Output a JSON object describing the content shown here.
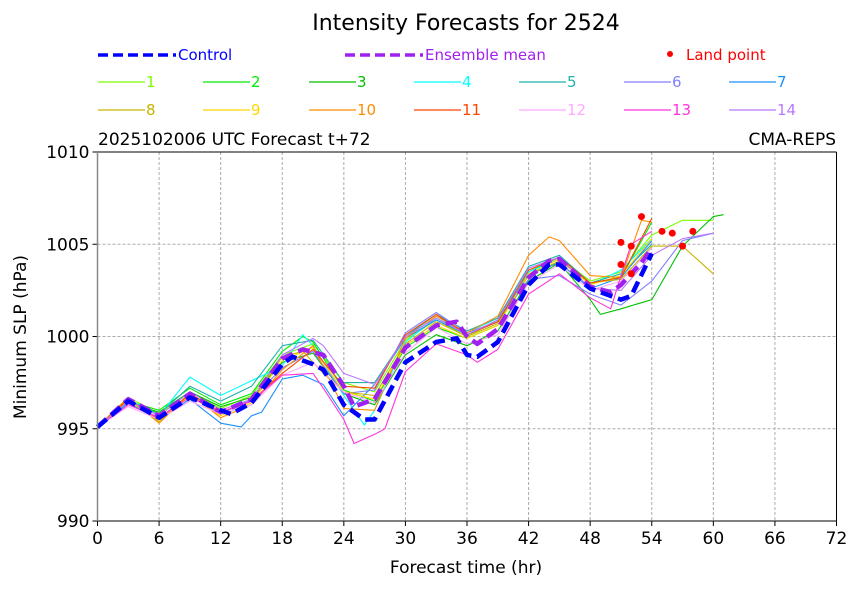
{
  "chart_data": {
    "type": "line",
    "title": "Intensity Forecasts for 2524",
    "subtitle_left": "2025102006 UTC Forecast t+72",
    "subtitle_right": "CMA-REPS",
    "xlabel": "Forecast time (hr)",
    "ylabel": "Minimum SLP (hPa)",
    "xlim": [
      0,
      72
    ],
    "ylim": [
      990,
      1010
    ],
    "xticks": [
      0,
      6,
      12,
      18,
      24,
      30,
      36,
      42,
      48,
      54,
      60,
      66,
      72
    ],
    "yticks": [
      990,
      995,
      1000,
      1005,
      1010
    ],
    "grid": true,
    "legend_placement": "top",
    "series": [
      {
        "name": "Control",
        "color": "#0000ff",
        "style": "dashed-thick",
        "x": [
          0,
          3,
          6,
          9,
          12,
          13,
          15,
          18,
          19,
          21,
          22,
          24,
          26,
          27,
          30,
          33,
          35,
          36,
          37,
          39,
          42,
          44,
          45,
          48,
          51,
          52,
          54
        ],
        "y": [
          995.1,
          996.5,
          995.6,
          996.7,
          996.0,
          995.8,
          996.4,
          998.5,
          998.9,
          998.5,
          998.2,
          996.3,
          995.5,
          995.5,
          998.6,
          999.7,
          999.9,
          999.0,
          998.9,
          999.7,
          1002.8,
          1003.9,
          1003.9,
          1002.6,
          1002.0,
          1002.2,
          1004.5
        ]
      },
      {
        "name": "Ensemble mean",
        "color": "#a020f0",
        "style": "dashed-thick",
        "x": [
          0,
          3,
          6,
          9,
          12,
          15,
          18,
          20,
          22,
          24,
          25,
          27,
          30,
          33,
          35,
          36,
          37,
          39,
          42,
          44,
          45,
          48,
          50,
          51,
          53,
          54
        ],
        "y": [
          995.1,
          996.6,
          995.7,
          996.9,
          995.9,
          996.6,
          998.8,
          999.3,
          999.0,
          997.3,
          996.2,
          996.6,
          999.4,
          1000.6,
          1000.8,
          1000.0,
          999.6,
          1000.4,
          1003.2,
          1004.1,
          1004.2,
          1002.7,
          1002.4,
          1002.8,
          1004.0,
          1004.8
        ]
      },
      {
        "name": "1",
        "color": "#7cfc00",
        "style": "thin",
        "x": [
          0,
          3,
          6,
          9,
          12,
          15,
          18,
          21,
          24,
          27,
          30,
          33,
          36,
          39,
          42,
          45,
          48,
          51,
          54,
          57,
          60
        ],
        "y": [
          995.1,
          996.7,
          995.8,
          997.0,
          996.1,
          996.8,
          999.0,
          999.6,
          997.5,
          997.0,
          999.8,
          1000.9,
          1000.0,
          1000.9,
          1003.6,
          1004.3,
          1003.0,
          1003.5,
          1005.5,
          1006.3,
          1006.3
        ]
      },
      {
        "name": "2",
        "color": "#00ee00",
        "style": "thin",
        "x": [
          0,
          3,
          6,
          9,
          12,
          15,
          18,
          20,
          21,
          24,
          27,
          30,
          33,
          36,
          39,
          42,
          45,
          48,
          51,
          54
        ],
        "y": [
          995.1,
          996.5,
          996.0,
          997.2,
          996.3,
          996.9,
          999.2,
          1000.0,
          999.7,
          997.1,
          996.5,
          999.4,
          1000.5,
          999.9,
          1000.6,
          1003.5,
          1004.3,
          1002.9,
          1003.2,
          1006.2
        ]
      },
      {
        "name": "3",
        "color": "#00c000",
        "style": "thin",
        "x": [
          0,
          3,
          6,
          9,
          12,
          15,
          18,
          21,
          24,
          27,
          30,
          33,
          36,
          39,
          42,
          45,
          48,
          49,
          51,
          54,
          57,
          60,
          61
        ],
        "y": [
          995.1,
          996.4,
          995.9,
          997.0,
          996.2,
          996.7,
          998.6,
          999.1,
          996.9,
          996.3,
          999.0,
          1000.1,
          999.5,
          1000.3,
          1003.0,
          1004.0,
          1002.0,
          1001.2,
          1001.5,
          1002.0,
          1004.9,
          1006.5,
          1006.6
        ]
      },
      {
        "name": "4",
        "color": "#00ffff",
        "style": "thin",
        "x": [
          0,
          3,
          6,
          9,
          12,
          15,
          18,
          20,
          21,
          24,
          26,
          27,
          30,
          33,
          36,
          39,
          42,
          45,
          48,
          51,
          54
        ],
        "y": [
          995.1,
          996.6,
          995.7,
          997.8,
          996.8,
          997.6,
          998.4,
          1000.1,
          999.5,
          996.8,
          995.2,
          996.0,
          999.7,
          1001.0,
          1000.2,
          1001.0,
          1003.5,
          1004.2,
          1002.8,
          1003.6,
          1005.3
        ]
      },
      {
        "name": "5",
        "color": "#20b2aa",
        "style": "thin",
        "x": [
          0,
          3,
          6,
          9,
          12,
          15,
          18,
          21,
          24,
          27,
          30,
          33,
          36,
          39,
          42,
          45,
          48,
          51,
          54
        ],
        "y": [
          995.1,
          996.5,
          995.8,
          997.3,
          996.5,
          997.3,
          999.5,
          999.8,
          997.5,
          997.5,
          1000.0,
          1001.2,
          1000.3,
          1001.0,
          1003.8,
          1004.4,
          1002.9,
          1003.4,
          1005.0
        ]
      },
      {
        "name": "6",
        "color": "#8080ff",
        "style": "thin",
        "x": [
          0,
          3,
          6,
          9,
          12,
          15,
          18,
          21,
          24,
          27,
          30,
          33,
          36,
          39,
          42,
          45,
          48,
          51,
          54,
          57,
          60
        ],
        "y": [
          995.1,
          996.4,
          995.6,
          996.8,
          995.8,
          996.6,
          998.3,
          999.2,
          996.9,
          997.1,
          1000.2,
          1001.3,
          1000.2,
          1000.8,
          1003.1,
          1003.3,
          1002.3,
          1001.7,
          1003.0,
          1005.2,
          1005.6
        ]
      },
      {
        "name": "7",
        "color": "#1e90ff",
        "style": "thin",
        "x": [
          0,
          3,
          6,
          9,
          12,
          14,
          15,
          16,
          18,
          20,
          22,
          24,
          27,
          30,
          33,
          36,
          39,
          42,
          45,
          48,
          51,
          54
        ],
        "y": [
          995.1,
          996.4,
          995.5,
          996.6,
          995.3,
          995.1,
          995.7,
          995.9,
          997.7,
          997.9,
          997.4,
          995.7,
          997.4,
          999.9,
          1000.9,
          1000.1,
          1000.8,
          1003.4,
          1004.0,
          1002.6,
          1003.2,
          1005.2
        ]
      },
      {
        "name": "8",
        "color": "#c8b400",
        "style": "thin",
        "x": [
          0,
          3,
          6,
          9,
          12,
          15,
          18,
          20,
          22,
          24,
          27,
          30,
          33,
          36,
          39,
          42,
          45,
          48,
          51,
          54,
          57,
          60
        ],
        "y": [
          995.1,
          996.6,
          995.4,
          996.9,
          995.9,
          996.5,
          998.9,
          999.2,
          998.0,
          997.0,
          996.8,
          999.6,
          1000.8,
          1000.0,
          1000.7,
          1003.3,
          1004.1,
          1002.9,
          1003.1,
          1004.9,
          1004.9,
          1003.4
        ]
      },
      {
        "name": "9",
        "color": "#ffd700",
        "style": "thin",
        "x": [
          0,
          3,
          6,
          9,
          12,
          15,
          18,
          21,
          24,
          27,
          30,
          33,
          36,
          39,
          42,
          45,
          48,
          51,
          54
        ],
        "y": [
          995.1,
          996.5,
          995.5,
          996.8,
          995.7,
          996.4,
          998.7,
          999.4,
          997.0,
          996.6,
          999.5,
          1000.6,
          999.9,
          1000.6,
          1003.4,
          1004.2,
          1002.8,
          1003.3,
          1005.3
        ]
      },
      {
        "name": "10",
        "color": "#ff8c00",
        "style": "thin",
        "x": [
          0,
          3,
          6,
          9,
          12,
          15,
          18,
          21,
          24,
          27,
          30,
          33,
          36,
          39,
          42,
          44,
          45,
          48,
          51,
          53,
          54
        ],
        "y": [
          995.1,
          996.7,
          995.3,
          996.9,
          995.6,
          996.3,
          998.2,
          999.5,
          996.1,
          996.0,
          999.9,
          1001.1,
          1000.2,
          1001.1,
          1004.4,
          1005.4,
          1005.2,
          1003.3,
          1003.2,
          1006.3,
          1006.2
        ]
      },
      {
        "name": "11",
        "color": "#ff4500",
        "style": "thin",
        "x": [
          0,
          3,
          6,
          9,
          12,
          15,
          18,
          21,
          24,
          27,
          30,
          33,
          36,
          39,
          42,
          45,
          48,
          51,
          54
        ],
        "y": [
          995.1,
          996.6,
          995.5,
          996.9,
          995.9,
          996.5,
          998.0,
          999.3,
          997.3,
          997.2,
          1000.1,
          1001.2,
          1000.1,
          1000.8,
          1003.6,
          1004.3,
          1002.9,
          1003.2,
          1006.4
        ]
      },
      {
        "name": "12",
        "color": "#ffaaff",
        "style": "thin",
        "x": [
          0,
          3,
          6,
          9,
          12,
          15,
          18,
          21,
          24,
          27,
          30,
          33,
          36,
          39,
          42,
          45,
          48,
          51,
          54
        ],
        "y": [
          995.1,
          996.2,
          995.5,
          996.5,
          995.8,
          996.3,
          997.9,
          998.6,
          997.0,
          996.4,
          999.1,
          1000.5,
          999.6,
          1000.1,
          1002.9,
          1003.9,
          1002.5,
          1003.0,
          1004.8
        ]
      },
      {
        "name": "13",
        "color": "#ff33dd",
        "style": "thin",
        "x": [
          0,
          3,
          6,
          9,
          12,
          15,
          18,
          21,
          22,
          24,
          25,
          27,
          28,
          30,
          33,
          36,
          37,
          39,
          42,
          45,
          48,
          50,
          51,
          52,
          54
        ],
        "y": [
          995.1,
          996.3,
          995.6,
          996.7,
          995.9,
          996.5,
          997.9,
          998.0,
          997.2,
          995.5,
          994.2,
          994.7,
          995.0,
          998.1,
          999.6,
          999.0,
          998.6,
          999.3,
          1002.3,
          1003.4,
          1002.1,
          1001.5,
          1003.3,
          1005.0,
          1005.7
        ]
      },
      {
        "name": "14",
        "color": "#bb77ff",
        "style": "thin",
        "x": [
          0,
          3,
          6,
          9,
          12,
          15,
          18,
          21,
          22,
          24,
          27,
          30,
          33,
          36,
          39,
          42,
          45,
          48,
          51,
          54,
          57,
          60
        ],
        "y": [
          995.1,
          996.5,
          995.7,
          997.0,
          996.0,
          996.6,
          999.0,
          999.9,
          999.5,
          998.0,
          997.4,
          1000.0,
          1001.0,
          1000.1,
          1000.9,
          1003.7,
          1004.3,
          1002.6,
          1002.5,
          1004.4,
          1005.3,
          1005.6
        ]
      }
    ],
    "land_points": {
      "name": "Land point",
      "color": "#ff0000",
      "x": [
        51,
        51,
        52,
        52,
        53,
        55,
        56,
        57,
        58
      ],
      "y": [
        1005.1,
        1003.9,
        1004.9,
        1003.4,
        1006.5,
        1005.7,
        1005.6,
        1004.9,
        1005.7
      ]
    },
    "legend": {
      "row1": [
        {
          "label": "Control",
          "color": "#0000ff",
          "label_color": "#0000ff",
          "style": "dashed-thick"
        },
        {
          "label": "Ensemble mean",
          "color": "#a020f0",
          "label_color": "#a020f0",
          "style": "dashed-thick"
        },
        {
          "label": "Land point",
          "color": "#ff0000",
          "label_color": "#ff0000",
          "style": "dot"
        }
      ],
      "row2": [
        "1",
        "2",
        "3",
        "4",
        "5",
        "6",
        "7"
      ],
      "row3": [
        "8",
        "9",
        "10",
        "11",
        "12",
        "13",
        "14"
      ]
    }
  }
}
